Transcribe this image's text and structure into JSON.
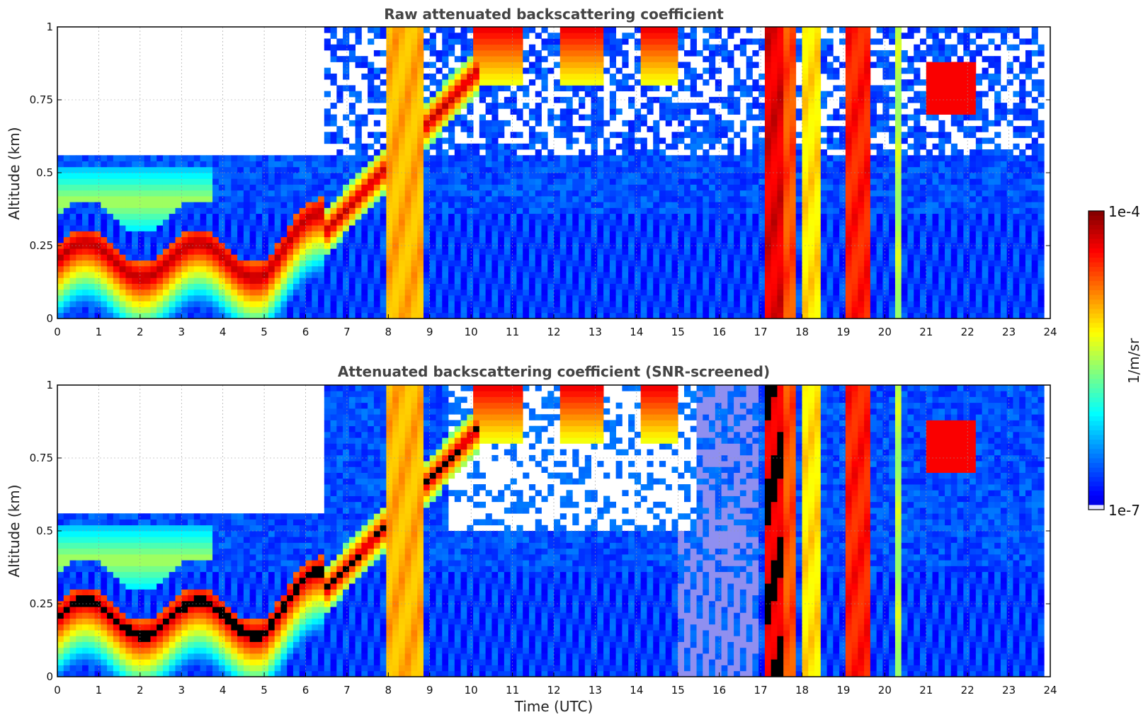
{
  "chart_data": [
    {
      "type": "heatmap",
      "title": "Raw attenuated backscattering coefficient",
      "xlabel": "",
      "ylabel": "Altitude (km)",
      "xlim": [
        0,
        24
      ],
      "ylim": [
        0,
        1
      ],
      "x_ticks": [
        "0",
        "1",
        "2",
        "3",
        "4",
        "5",
        "6",
        "7",
        "8",
        "9",
        "10",
        "11",
        "12",
        "13",
        "14",
        "15",
        "16",
        "17",
        "18",
        "19",
        "20",
        "21",
        "22",
        "23",
        "24"
      ],
      "y_ticks": [
        "0",
        "0.25",
        "0.5",
        "0.75",
        "1"
      ],
      "grid": true,
      "screened": false
    },
    {
      "type": "heatmap",
      "title": "Attenuated backscattering coefficient (SNR-screened)",
      "xlabel": "Time (UTC)",
      "ylabel": "Altitude (km)",
      "xlim": [
        0,
        24
      ],
      "ylim": [
        0,
        1
      ],
      "x_ticks": [
        "0",
        "1",
        "2",
        "3",
        "4",
        "5",
        "6",
        "7",
        "8",
        "9",
        "10",
        "11",
        "12",
        "13",
        "14",
        "15",
        "16",
        "17",
        "18",
        "19",
        "20",
        "21",
        "22",
        "23",
        "24"
      ],
      "y_ticks": [
        "0",
        "0.25",
        "0.5",
        "0.75",
        "1"
      ],
      "grid": true,
      "screened": true
    }
  ],
  "colorbar": {
    "label": "1/m/sr",
    "max_label": "1e-4",
    "min_label": "1e-7",
    "scale": "log",
    "colormap": "jet"
  }
}
